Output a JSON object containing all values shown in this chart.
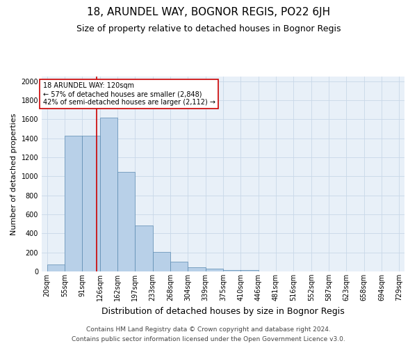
{
  "title": "18, ARUNDEL WAY, BOGNOR REGIS, PO22 6JH",
  "subtitle": "Size of property relative to detached houses in Bognor Regis",
  "xlabel": "Distribution of detached houses by size in Bognor Regis",
  "ylabel": "Number of detached properties",
  "footnote1": "Contains HM Land Registry data © Crown copyright and database right 2024.",
  "footnote2": "Contains public sector information licensed under the Open Government Licence v3.0.",
  "bin_labels": [
    "20sqm",
    "55sqm",
    "91sqm",
    "126sqm",
    "162sqm",
    "197sqm",
    "233sqm",
    "268sqm",
    "304sqm",
    "339sqm",
    "375sqm",
    "410sqm",
    "446sqm",
    "481sqm",
    "516sqm",
    "552sqm",
    "587sqm",
    "623sqm",
    "658sqm",
    "694sqm",
    "729sqm"
  ],
  "bar_heights": [
    75,
    1425,
    1430,
    1620,
    1050,
    480,
    205,
    100,
    45,
    28,
    18,
    12,
    0,
    0,
    0,
    0,
    0,
    0,
    0,
    0,
    0
  ],
  "bar_color": "#b8d0e8",
  "bar_edgecolor": "#5a8ab0",
  "grid_color": "#c8d8e8",
  "bg_color": "#e8f0f8",
  "vline_color": "#cc0000",
  "annotation_text": "18 ARUNDEL WAY: 120sqm\n← 57% of detached houses are smaller (2,848)\n42% of semi-detached houses are larger (2,112) →",
  "annotation_box_edgecolor": "#cc0000",
  "ylim": [
    0,
    2050
  ],
  "yticks": [
    0,
    200,
    400,
    600,
    800,
    1000,
    1200,
    1400,
    1600,
    1800,
    2000
  ],
  "title_fontsize": 11,
  "subtitle_fontsize": 9,
  "xlabel_fontsize": 9,
  "ylabel_fontsize": 8,
  "tick_fontsize": 7,
  "annotation_fontsize": 7,
  "footnote_fontsize": 6.5
}
